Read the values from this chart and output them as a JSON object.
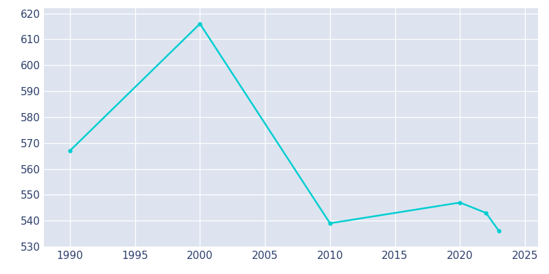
{
  "years": [
    1990,
    2000,
    2010,
    2020,
    2022,
    2023
  ],
  "population": [
    567,
    616,
    539,
    547,
    543,
    536
  ],
  "line_color": "#00CED1",
  "marker": "o",
  "marker_size": 3.5,
  "line_width": 1.8,
  "plot_bg_color": "#DDE4EF",
  "fig_bg_color": "#FFFFFF",
  "grid_color": "#FFFFFF",
  "xlabel": "",
  "ylabel": "",
  "xlim": [
    1988,
    2026
  ],
  "ylim": [
    530,
    622
  ],
  "yticks": [
    530,
    540,
    550,
    560,
    570,
    580,
    590,
    600,
    610,
    620
  ],
  "xticks": [
    1990,
    1995,
    2000,
    2005,
    2010,
    2015,
    2020,
    2025
  ],
  "tick_color": "#2C3E6B",
  "tick_fontsize": 11
}
